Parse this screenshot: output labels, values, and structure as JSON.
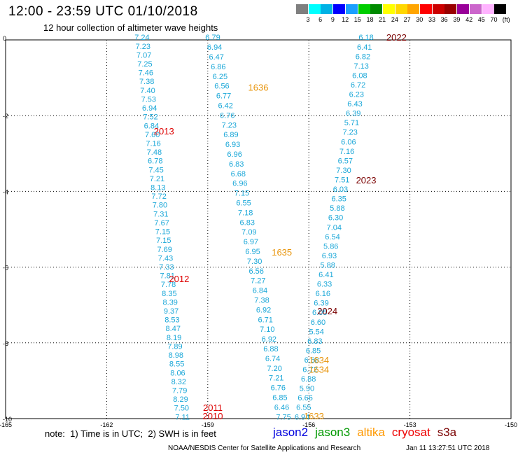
{
  "header": {
    "title": "12:00 - 23:59 UTC 01/10/2018",
    "subtitle": "12 hour collection of altimeter wave heights"
  },
  "colorbar": {
    "colors": [
      "#7f7f7f",
      "#00ffff",
      "#00b2e5",
      "#0000ff",
      "#1a9fff",
      "#00ce00",
      "#008b00",
      "#ffff00",
      "#ffd700",
      "#ffa500",
      "#ff0000",
      "#cc0000",
      "#990000",
      "#990099",
      "#cc66cc",
      "#ffb3ff",
      "#000000"
    ],
    "labels": [
      "3",
      "6",
      "9",
      "12",
      "15",
      "18",
      "21",
      "24",
      "27",
      "30",
      "33",
      "36",
      "39",
      "42",
      "45",
      "70",
      "(ft)"
    ]
  },
  "chart_data": {
    "type": "scatter",
    "xlim": [
      -165,
      -150
    ],
    "ylim": [
      -10,
      0
    ],
    "x_ticks": [
      "-165",
      "-162",
      "-159",
      "-156",
      "-153",
      "-150"
    ],
    "y_ticks": [
      "0",
      "-2",
      "-4",
      "-6",
      "-8",
      "-10"
    ],
    "grid": true,
    "value_color": "#1aa7d8",
    "tracks": [
      {
        "name": "track-left",
        "x_start": -160.95,
        "x_end": -159.75,
        "y_start": 0.07,
        "y_end": -9.95,
        "values": [
          "7.24",
          "7.23",
          "7.07",
          "7.25",
          "7.46",
          "7.38",
          "7.40",
          "7.53",
          "6.94",
          "7.52",
          "6.84",
          "7.60",
          "7.16",
          "7.48",
          "6.78",
          "7.45",
          "7.21",
          "8.13",
          "7.72",
          "7.80",
          "7.31",
          "7.67",
          "7.15",
          "7.15",
          "7.69",
          "7.43",
          "7.33",
          "7.81",
          "7.78",
          "8.35",
          "8.39",
          "9.37",
          "8.53",
          "8.47",
          "8.19",
          "7.89",
          "8.98",
          "8.55",
          "8.06",
          "8.32",
          "7.79",
          "8.29",
          "7.50",
          "7.11"
        ]
      },
      {
        "name": "track-middle",
        "x_start": -158.85,
        "x_end": -156.75,
        "y_start": 0.07,
        "y_end": -9.95,
        "values": [
          "6.79",
          "6.94",
          "6.47",
          "6.86",
          "6.25",
          "6.56",
          "6.77",
          "6.42",
          "6.76",
          "7.23",
          "6.89",
          "6.93",
          "6.96",
          "6.83",
          "6.68",
          "6.96",
          "7.15",
          "6.55",
          "7.18",
          "6.83",
          "7.09",
          "6.97",
          "6.95",
          "7.30",
          "6.56",
          "7.27",
          "6.84",
          "7.38",
          "6.92",
          "6.71",
          "7.10",
          "6.92",
          "6.88",
          "6.74",
          "7.20",
          "7.21",
          "6.76",
          "6.85",
          "6.46",
          "7.75"
        ]
      },
      {
        "name": "track-right",
        "x_start": -154.3,
        "x_end": -156.2,
        "y_start": 0.07,
        "y_end": -9.95,
        "values": [
          "6.18",
          "6.41",
          "6.82",
          "7.13",
          "6.08",
          "6.72",
          "6.23",
          "6.43",
          "6.39",
          "5.71",
          "7.23",
          "6.06",
          "7.16",
          "6.57",
          "7.30",
          "7.51",
          "6.03",
          "6.35",
          "5.88",
          "6.30",
          "7.04",
          "6.54",
          "5.86",
          "6.93",
          "5.88",
          "6.41",
          "6.33",
          "6.16",
          "6.39",
          "6.05",
          "6.60",
          "5.54",
          "6.83",
          "6.85",
          "6.68",
          "6.72",
          "6.88",
          "5.90",
          "6.66",
          "6.55",
          "6.94"
        ]
      }
    ],
    "pass_labels": [
      {
        "text": "2022",
        "x": -153.4,
        "y": 0.07,
        "color": "#7a0000"
      },
      {
        "text": "1636",
        "x": -157.5,
        "y": -1.25,
        "color": "#e8940a"
      },
      {
        "text": "2013",
        "x": -160.3,
        "y": -2.4,
        "color": "#dd0000"
      },
      {
        "text": "2023",
        "x": -154.3,
        "y": -3.7,
        "color": "#7a0000"
      },
      {
        "text": "1635",
        "x": -156.8,
        "y": -5.6,
        "color": "#e8940a"
      },
      {
        "text": "2012",
        "x": -159.85,
        "y": -6.3,
        "color": "#dd0000"
      },
      {
        "text": "2024",
        "x": -155.45,
        "y": -7.15,
        "color": "#7a0000"
      },
      {
        "text": "1634",
        "x": -155.7,
        "y": -8.45,
        "color": "#e8940a"
      },
      {
        "text": "1634",
        "x": -155.7,
        "y": -8.7,
        "color": "#e8940a"
      },
      {
        "text": "2011",
        "x": -158.85,
        "y": -9.7,
        "color": "#dd0000"
      },
      {
        "text": "2010",
        "x": -158.85,
        "y": -9.93,
        "color": "#dd0000"
      },
      {
        "text": "1633",
        "x": -155.85,
        "y": -9.93,
        "color": "#e8940a"
      }
    ]
  },
  "footer": {
    "note": "note:  1) Time is in UTC;  2) SWH is in feet",
    "legend": [
      {
        "name": "jason2",
        "color": "#0000dd"
      },
      {
        "name": "jason3",
        "color": "#009900"
      },
      {
        "name": "altika",
        "color": "#ff9900"
      },
      {
        "name": "cryosat",
        "color": "#ee0000"
      },
      {
        "name": "s3a",
        "color": "#7a0000"
      }
    ],
    "credit": "NOAA/NESDIS Center for Satellite Applications and Research",
    "timestamp": "Jan 11 13:27:51 UTC 2018"
  }
}
